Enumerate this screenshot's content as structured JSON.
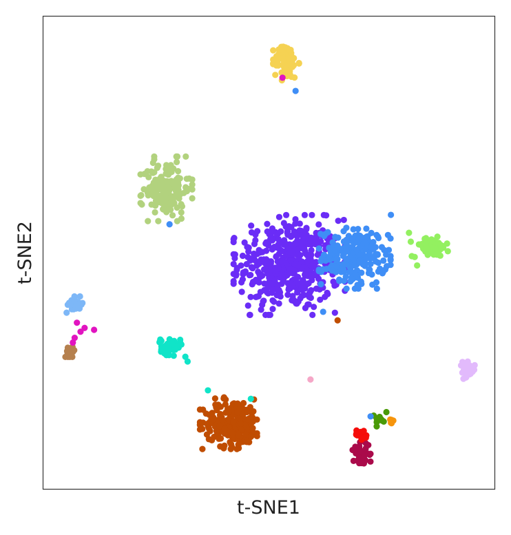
{
  "chart_data": {
    "type": "scatter",
    "title": "",
    "xlabel": "t-SNE1",
    "ylabel": "t-SNE2",
    "xlim": [
      0,
      100
    ],
    "ylim": [
      0,
      100
    ],
    "grid": false,
    "ticks_shown": false,
    "legend": "none",
    "clusters": [
      {
        "color": "#6a2cf6",
        "count": 470,
        "center": [
          54.5,
          47.4
        ],
        "spread": [
          5.6,
          4.8
        ],
        "shape": "round"
      },
      {
        "color": "#3f8ef6",
        "count": 220,
        "center": [
          69.0,
          49.0
        ],
        "spread": [
          3.6,
          3.0
        ],
        "shape": "round"
      },
      {
        "color": "#93f060",
        "count": 70,
        "center": [
          85.8,
          51.2
        ],
        "spread": [
          2.0,
          1.0
        ],
        "shape": "round"
      },
      {
        "color": "#b2d27e",
        "count": 150,
        "center": [
          27.3,
          63.5
        ],
        "spread": [
          2.6,
          3.1
        ],
        "shape": "round"
      },
      {
        "color": "#f5d253",
        "count": 80,
        "center": [
          53.8,
          90.4
        ],
        "spread": [
          1.3,
          1.8
        ],
        "shape": "round"
      },
      {
        "color": "#c04d02",
        "count": 230,
        "center": [
          42.0,
          14.0
        ],
        "spread": [
          3.3,
          2.5
        ],
        "shape": "round"
      },
      {
        "color": "#10e4c8",
        "count": 45,
        "center": [
          28.2,
          30.2
        ],
        "spread": [
          1.1,
          0.9
        ],
        "shape": "round"
      },
      {
        "color": "#7db7f7",
        "count": 30,
        "center": [
          7.2,
          39.0
        ],
        "spread": [
          0.9,
          0.8
        ],
        "shape": "round"
      },
      {
        "color": "#b5804e",
        "count": 14,
        "center": [
          6.0,
          29.5
        ],
        "spread": [
          0.6,
          0.7
        ],
        "shape": "round"
      },
      {
        "color": "#e2bafc",
        "count": 30,
        "center": [
          93.8,
          25.0
        ],
        "spread": [
          0.9,
          0.9
        ],
        "shape": "round"
      },
      {
        "color": "#aa0a4a",
        "count": 45,
        "center": [
          70.5,
          7.5
        ],
        "spread": [
          0.9,
          1.3
        ],
        "shape": "round"
      },
      {
        "color": "#f50d0a",
        "count": 18,
        "center": [
          70.5,
          11.5
        ],
        "spread": [
          0.9,
          0.5
        ],
        "shape": "round"
      },
      {
        "color": "#4a9a07",
        "count": 16,
        "center": [
          74.2,
          14.6
        ],
        "spread": [
          0.8,
          0.6
        ],
        "shape": "round"
      },
      {
        "color": "#f6950c",
        "count": 5,
        "center": [
          77.0,
          14.3
        ],
        "spread": [
          0.3,
          0.3
        ],
        "shape": "round"
      }
    ],
    "extra_points": [
      {
        "color": "#e114c0",
        "x": 53.0,
        "y": 87.0
      },
      {
        "color": "#3f8ef6",
        "x": 55.9,
        "y": 84.2
      },
      {
        "color": "#3f8ef6",
        "x": 28.0,
        "y": 56.0
      },
      {
        "color": "#e114c0",
        "x": 7.5,
        "y": 35.2
      },
      {
        "color": "#e114c0",
        "x": 8.3,
        "y": 33.3
      },
      {
        "color": "#e114c0",
        "x": 9.2,
        "y": 34.1
      },
      {
        "color": "#e114c0",
        "x": 7.0,
        "y": 32.0
      },
      {
        "color": "#e114c0",
        "x": 11.3,
        "y": 33.7
      },
      {
        "color": "#e114c0",
        "x": 6.6,
        "y": 31.0
      },
      {
        "color": "#c04d02",
        "x": 65.2,
        "y": 35.7
      },
      {
        "color": "#3f8ef6",
        "x": 62.0,
        "y": 37.5
      },
      {
        "color": "#f5a7c7",
        "x": 59.2,
        "y": 23.2
      },
      {
        "color": "#10e4c8",
        "x": 36.5,
        "y": 20.9
      },
      {
        "color": "#10e4c8",
        "x": 46.0,
        "y": 19.1
      },
      {
        "color": "#3f8ef6",
        "x": 72.5,
        "y": 15.4
      },
      {
        "color": "#4a9a07",
        "x": 76.0,
        "y": 16.3
      },
      {
        "color": "#93f060",
        "x": 82.8,
        "y": 47.3
      },
      {
        "color": "#3f8ef6",
        "x": 77.0,
        "y": 58.0
      },
      {
        "color": "#93f060",
        "x": 81.0,
        "y": 54.2
      },
      {
        "color": "#10e4c8",
        "x": 31.5,
        "y": 28.0
      },
      {
        "color": "#10e4c8",
        "x": 32.0,
        "y": 27.0
      }
    ]
  }
}
